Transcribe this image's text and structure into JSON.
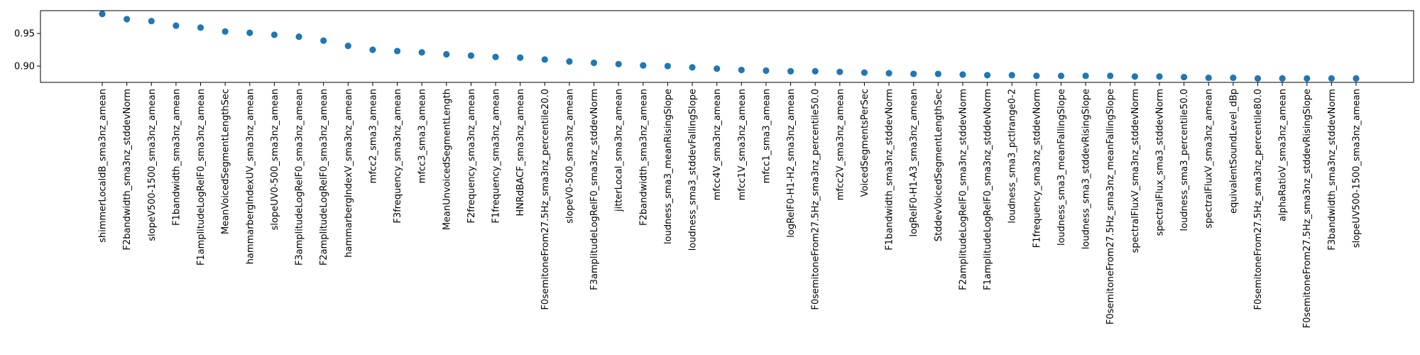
{
  "chart_data": {
    "type": "scatter",
    "title": "",
    "xlabel": "",
    "ylabel": "",
    "marker_color": "#1f77b4",
    "grid": false,
    "legend": "none",
    "ylim": [
      0.875,
      0.985
    ],
    "yticks": [
      {
        "value": 0.9,
        "label": "0.90"
      },
      {
        "value": 0.95,
        "label": "0.95"
      }
    ],
    "categories": [
      "shimmerLocaldB_sma3nz_amean",
      "F2bandwidth_sma3nz_stddevNorm",
      "slopeV500-1500_sma3nz_amean",
      "F1bandwidth_sma3nz_amean",
      "F1amplitudeLogRelF0_sma3nz_amean",
      "MeanVoicedSegmentLengthSec",
      "hammarbergIndexUV_sma3nz_amean",
      "slopeUV0-500_sma3nz_amean",
      "F3amplitudeLogRelF0_sma3nz_amean",
      "F2amplitudeLogRelF0_sma3nz_amean",
      "hammarbergIndexV_sma3nz_amean",
      "mfcc2_sma3_amean",
      "F3frequency_sma3nz_amean",
      "mfcc3_sma3_amean",
      "MeanUnvoicedSegmentLength",
      "F2frequency_sma3nz_amean",
      "F1frequency_sma3nz_amean",
      "HNRdBACF_sma3nz_amean",
      "F0semitoneFrom27.5Hz_sma3nz_percentile20.0",
      "slopeV0-500_sma3nz_amean",
      "F3amplitudeLogRelF0_sma3nz_stddevNorm",
      "jitterLocal_sma3nz_amean",
      "F2bandwidth_sma3nz_amean",
      "loudness_sma3_meanRisingSlope",
      "loudness_sma3_stddevFallingSlope",
      "mfcc4V_sma3nz_amean",
      "mfcc1V_sma3nz_amean",
      "mfcc1_sma3_amean",
      "logRelF0-H1-H2_sma3nz_amean",
      "F0semitoneFrom27.5Hz_sma3nz_percentile50.0",
      "mfcc2V_sma3nz_amean",
      "VoicedSegmentsPerSec",
      "F1bandwidth_sma3nz_stddevNorm",
      "logRelF0-H1-A3_sma3nz_amean",
      "StddevVoicedSegmentLengthSec",
      "F2amplitudeLogRelF0_sma3nz_stddevNorm",
      "F1amplitudeLogRelF0_sma3nz_stddevNorm",
      "loudness_sma3_pctlrange0-2",
      "F1frequency_sma3nz_stddevNorm",
      "loudness_sma3_meanFallingSlope",
      "loudness_sma3_stddevRisingSlope",
      "F0semitoneFrom27.5Hz_sma3nz_meanFallingSlope",
      "spectralFluxV_sma3nz_stddevNorm",
      "spectralFlux_sma3_stddevNorm",
      "loudness_sma3_percentile50.0",
      "spectralFluxV_sma3nz_amean",
      "equivalentSoundLevel_dBp",
      "F0semitoneFrom27.5Hz_sma3nz_percentile80.0",
      "alphaRatioV_sma3nz_amean",
      "F0semitoneFrom27.5Hz_sma3nz_stddevRisingSlope",
      "F3bandwidth_sma3nz_stddevNorm",
      "slopeUV500-1500_sma3nz_amean"
    ],
    "values": [
      0.98,
      0.972,
      0.969,
      0.962,
      0.959,
      0.953,
      0.951,
      0.948,
      0.945,
      0.939,
      0.931,
      0.925,
      0.923,
      0.921,
      0.918,
      0.916,
      0.914,
      0.913,
      0.91,
      0.907,
      0.905,
      0.903,
      0.901,
      0.9,
      0.898,
      0.896,
      0.894,
      0.893,
      0.892,
      0.892,
      0.891,
      0.89,
      0.889,
      0.888,
      0.888,
      0.887,
      0.886,
      0.886,
      0.885,
      0.885,
      0.885,
      0.885,
      0.884,
      0.884,
      0.883,
      0.882,
      0.882,
      0.881,
      0.881,
      0.881,
      0.881,
      0.881
    ]
  }
}
